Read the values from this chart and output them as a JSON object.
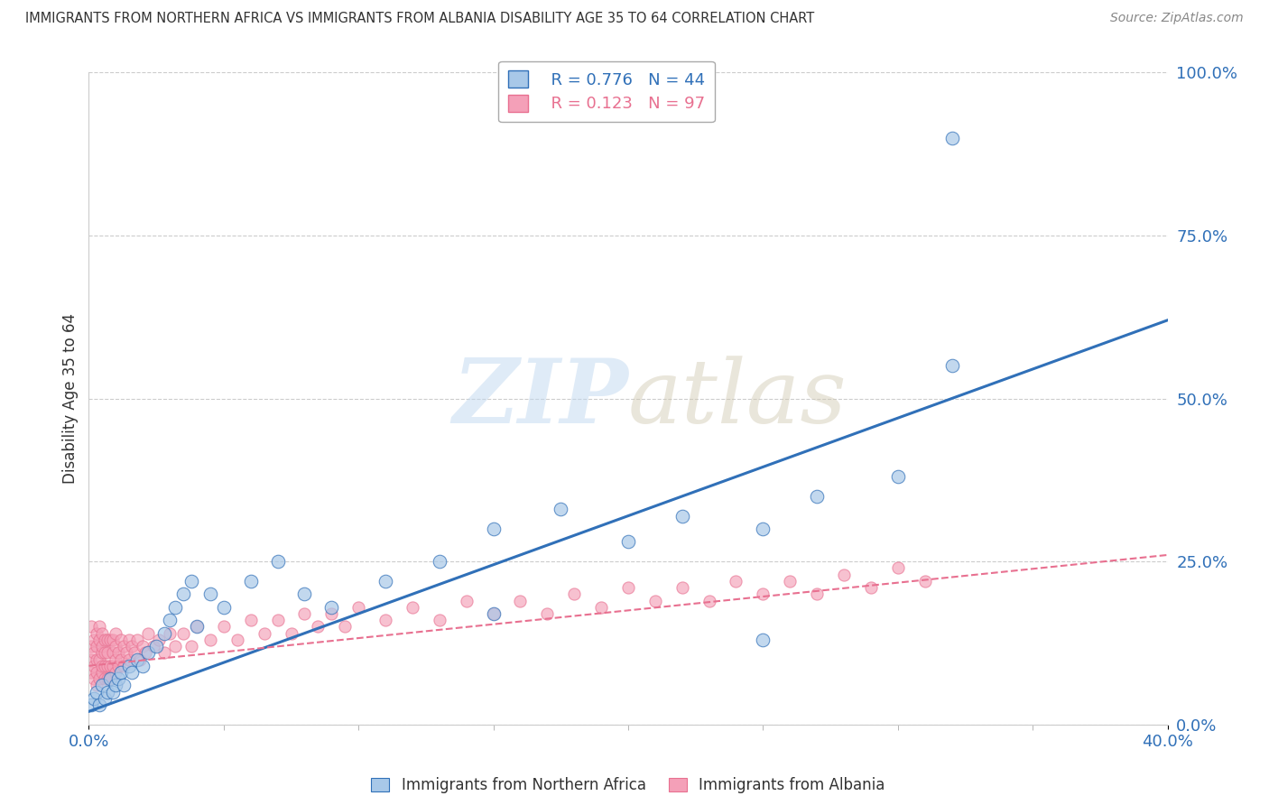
{
  "title": "IMMIGRANTS FROM NORTHERN AFRICA VS IMMIGRANTS FROM ALBANIA DISABILITY AGE 35 TO 64 CORRELATION CHART",
  "source": "Source: ZipAtlas.com",
  "ylabel": "Disability Age 35 to 64",
  "xlim": [
    0.0,
    0.4
  ],
  "ylim": [
    0.0,
    1.0
  ],
  "xticks": [
    0.0,
    0.4
  ],
  "xtick_labels": [
    "0.0%",
    "40.0%"
  ],
  "ytick_labels": [
    "0.0%",
    "25.0%",
    "50.0%",
    "75.0%",
    "100.0%"
  ],
  "yticks": [
    0.0,
    0.25,
    0.5,
    0.75,
    1.0
  ],
  "legend_r1": "R = 0.776",
  "legend_n1": "N = 44",
  "legend_r2": "R = 0.123",
  "legend_n2": "N = 97",
  "color_blue": "#a8c8e8",
  "color_pink": "#f4a0b8",
  "color_blue_line": "#3070b8",
  "color_pink_line": "#e87090",
  "color_blue_dark": "#3070b8",
  "color_pink_dark": "#e87090",
  "watermark_zip": "ZIP",
  "watermark_atlas": "atlas",
  "blue_scatter_x": [
    0.001,
    0.002,
    0.003,
    0.004,
    0.005,
    0.006,
    0.007,
    0.008,
    0.009,
    0.01,
    0.011,
    0.012,
    0.013,
    0.015,
    0.016,
    0.018,
    0.02,
    0.022,
    0.025,
    0.028,
    0.03,
    0.032,
    0.035,
    0.038,
    0.04,
    0.045,
    0.05,
    0.06,
    0.07,
    0.08,
    0.09,
    0.11,
    0.13,
    0.15,
    0.175,
    0.2,
    0.22,
    0.25,
    0.27,
    0.3,
    0.32,
    0.15,
    0.25,
    0.32
  ],
  "blue_scatter_y": [
    0.03,
    0.04,
    0.05,
    0.03,
    0.06,
    0.04,
    0.05,
    0.07,
    0.05,
    0.06,
    0.07,
    0.08,
    0.06,
    0.09,
    0.08,
    0.1,
    0.09,
    0.11,
    0.12,
    0.14,
    0.16,
    0.18,
    0.2,
    0.22,
    0.15,
    0.2,
    0.18,
    0.22,
    0.25,
    0.2,
    0.18,
    0.22,
    0.25,
    0.3,
    0.33,
    0.28,
    0.32,
    0.3,
    0.35,
    0.38,
    0.55,
    0.17,
    0.13,
    0.9
  ],
  "pink_scatter_x": [
    0.0005,
    0.001,
    0.001,
    0.001,
    0.002,
    0.002,
    0.002,
    0.002,
    0.003,
    0.003,
    0.003,
    0.003,
    0.003,
    0.004,
    0.004,
    0.004,
    0.004,
    0.005,
    0.005,
    0.005,
    0.005,
    0.005,
    0.006,
    0.006,
    0.006,
    0.006,
    0.007,
    0.007,
    0.007,
    0.007,
    0.008,
    0.008,
    0.008,
    0.009,
    0.009,
    0.009,
    0.01,
    0.01,
    0.01,
    0.01,
    0.011,
    0.011,
    0.012,
    0.012,
    0.013,
    0.013,
    0.014,
    0.015,
    0.015,
    0.016,
    0.017,
    0.018,
    0.019,
    0.02,
    0.021,
    0.022,
    0.024,
    0.026,
    0.028,
    0.03,
    0.032,
    0.035,
    0.038,
    0.04,
    0.045,
    0.05,
    0.055,
    0.06,
    0.065,
    0.07,
    0.075,
    0.08,
    0.085,
    0.09,
    0.095,
    0.1,
    0.11,
    0.12,
    0.13,
    0.14,
    0.15,
    0.16,
    0.17,
    0.18,
    0.19,
    0.2,
    0.21,
    0.22,
    0.23,
    0.24,
    0.25,
    0.26,
    0.27,
    0.28,
    0.29,
    0.3,
    0.31
  ],
  "pink_scatter_y": [
    0.1,
    0.12,
    0.08,
    0.15,
    0.11,
    0.09,
    0.13,
    0.07,
    0.1,
    0.14,
    0.08,
    0.12,
    0.06,
    0.13,
    0.1,
    0.07,
    0.15,
    0.11,
    0.08,
    0.14,
    0.09,
    0.12,
    0.13,
    0.09,
    0.07,
    0.11,
    0.13,
    0.09,
    0.07,
    0.11,
    0.13,
    0.09,
    0.07,
    0.13,
    0.09,
    0.11,
    0.12,
    0.08,
    0.1,
    0.14,
    0.11,
    0.09,
    0.13,
    0.1,
    0.12,
    0.09,
    0.11,
    0.13,
    0.1,
    0.12,
    0.11,
    0.13,
    0.1,
    0.12,
    0.11,
    0.14,
    0.12,
    0.13,
    0.11,
    0.14,
    0.12,
    0.14,
    0.12,
    0.15,
    0.13,
    0.15,
    0.13,
    0.16,
    0.14,
    0.16,
    0.14,
    0.17,
    0.15,
    0.17,
    0.15,
    0.18,
    0.16,
    0.18,
    0.16,
    0.19,
    0.17,
    0.19,
    0.17,
    0.2,
    0.18,
    0.21,
    0.19,
    0.21,
    0.19,
    0.22,
    0.2,
    0.22,
    0.2,
    0.23,
    0.21,
    0.24,
    0.22
  ],
  "blue_line_x": [
    0.0,
    0.4
  ],
  "blue_line_y": [
    0.02,
    0.62
  ],
  "pink_line_x": [
    0.0,
    0.4
  ],
  "pink_line_y": [
    0.09,
    0.26
  ],
  "background_color": "#ffffff",
  "grid_color": "#cccccc",
  "legend_label_blue": "Immigrants from Northern Africa",
  "legend_label_pink": "Immigrants from Albania"
}
